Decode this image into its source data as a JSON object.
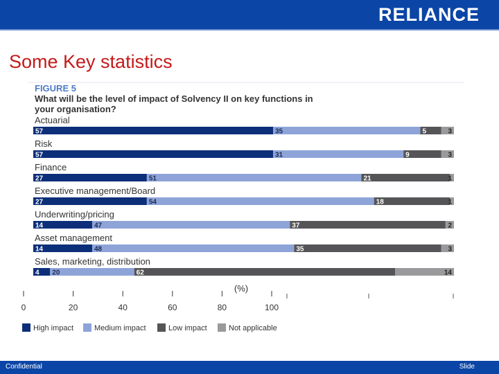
{
  "header": {
    "logo_text": "RELIANCE"
  },
  "slide": {
    "title": "Some Key statistics"
  },
  "footer": {
    "left_text": "Confidential",
    "right_text": "Slide"
  },
  "colors": {
    "brand_blue": "#0b45a6",
    "title_red": "#c41a1a",
    "high": "#0d2f7a",
    "medium": "#8ea4d8",
    "low": "#555558",
    "na": "#9a9a9c"
  },
  "chart_data": {
    "type": "bar",
    "orientation": "horizontal-stacked",
    "figure_label": "FIGURE 5",
    "title": "What will be the level of impact of Solvency II on key functions in your organisation?",
    "xlabel": "(%)",
    "xlim": [
      0,
      100
    ],
    "xticks": [
      0,
      20,
      40,
      60,
      80,
      100
    ],
    "legend_position": "bottom",
    "categories": [
      "Actuarial",
      "Risk",
      "Finance",
      "Executive management/Board",
      "Underwriting/pricing",
      "Asset management",
      "Sales, marketing, distribution"
    ],
    "series": [
      {
        "name": "High impact",
        "color": "#0d2f7a",
        "values": [
          57,
          57,
          27,
          27,
          14,
          14,
          4
        ]
      },
      {
        "name": "Medium impact",
        "color": "#8ea4d8",
        "values": [
          35,
          31,
          51,
          54,
          47,
          48,
          20
        ]
      },
      {
        "name": "Low impact",
        "color": "#555558",
        "values": [
          5,
          9,
          21,
          18,
          37,
          35,
          62
        ]
      },
      {
        "name": "Not applicable",
        "color": "#9a9a9c",
        "values": [
          3,
          3,
          1,
          1,
          2,
          3,
          14
        ]
      }
    ]
  }
}
